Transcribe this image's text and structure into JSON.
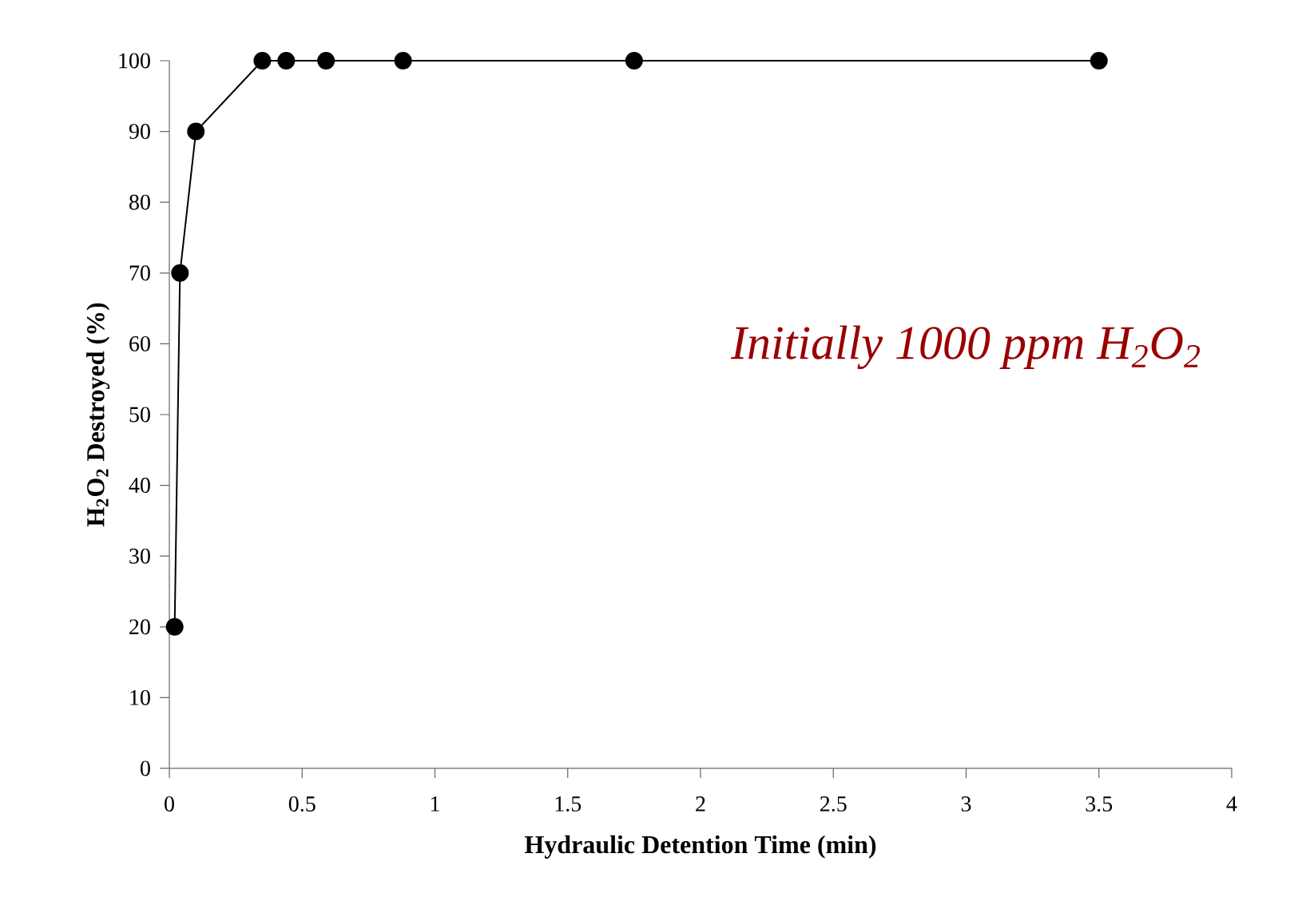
{
  "chart_data": {
    "type": "line",
    "xlabel": "Hydraulic Detention Time (min)",
    "ylabel": "H$_{2}$O$_{2}$ Destroyed (%)",
    "annotations": [
      "Initially 1000 ppm H$_{2}$O$_{2}$"
    ],
    "x": [
      0.02,
      0.04,
      0.1,
      0.35,
      0.44,
      0.59,
      0.88,
      1.75,
      3.5
    ],
    "series": [
      {
        "color": "#000000",
        "values": [
          20,
          70,
          90,
          100,
          100,
          100,
          100,
          100,
          100
        ]
      }
    ],
    "xlim": [
      0,
      4
    ],
    "xticks": [
      0,
      0.5,
      1,
      1.5,
      2,
      2.5,
      3,
      3.5,
      4
    ],
    "ylim": [
      0,
      100
    ],
    "yticks": [
      0,
      10,
      20,
      30,
      40,
      50,
      60,
      70,
      80,
      90,
      100
    ],
    "marker": "circle",
    "line_style": "solid"
  }
}
